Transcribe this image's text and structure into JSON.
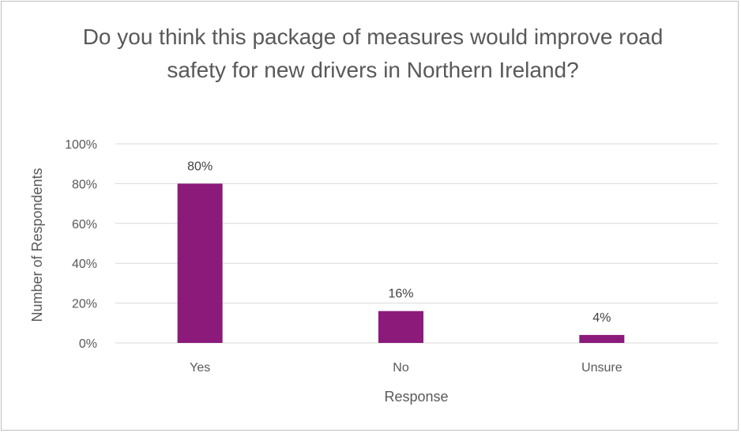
{
  "chart_data": {
    "type": "bar",
    "title": "Do you think this package of measures would improve road safety for new drivers in Northern Ireland?",
    "xlabel": "Response",
    "ylabel": "Number of Respondents",
    "categories": [
      "Yes",
      "No",
      "Unsure"
    ],
    "values": [
      80,
      16,
      4
    ],
    "data_labels": [
      "80%",
      "16%",
      "4%"
    ],
    "yticks": [
      "0%",
      "20%",
      "40%",
      "60%",
      "80%",
      "100%"
    ],
    "ylim": [
      0,
      100
    ],
    "grid": true,
    "legend": "none",
    "bar_color": "#8b1a7b",
    "grid_color": "#d9d9d9"
  }
}
